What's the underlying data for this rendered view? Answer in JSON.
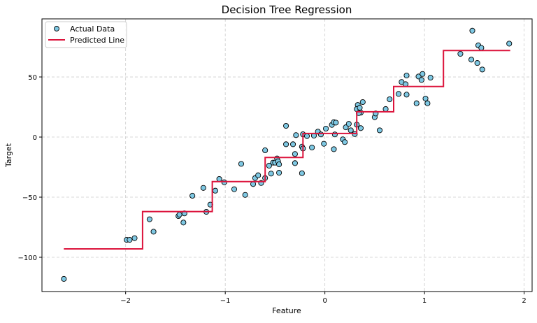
{
  "chart_data": {
    "type": "scatter",
    "title": "Decision Tree Regression",
    "xlabel": "Feature",
    "ylabel": "Target",
    "xlim": [
      -2.84,
      2.08
    ],
    "ylim": [
      -128.5,
      98.3
    ],
    "xticks": [
      -2,
      -1,
      0,
      1,
      2
    ],
    "xtick_labels": [
      "−2",
      "−1",
      "0",
      "1",
      "2"
    ],
    "yticks": [
      -100,
      -50,
      0,
      50
    ],
    "ytick_labels": [
      "−100",
      "−50",
      "0",
      "50"
    ],
    "grid": true,
    "legend_position": "top-left",
    "colors": {
      "points": "#7ec8e3",
      "line": "#dc143c"
    },
    "series": [
      {
        "name": "Actual Data",
        "kind": "scatter",
        "x": [
          -2.62,
          -1.99,
          -1.96,
          -1.91,
          -1.76,
          -1.72,
          -1.47,
          -1.46,
          -1.41,
          -1.42,
          -1.33,
          -1.22,
          -1.19,
          -1.15,
          -1.1,
          -1.06,
          -1.01,
          -0.91,
          -0.84,
          -0.8,
          -0.72,
          -0.7,
          -0.67,
          -0.64,
          -0.6,
          -0.6,
          -0.56,
          -0.54,
          -0.52,
          -0.5,
          -0.48,
          -0.47,
          -0.46,
          -0.46,
          -0.39,
          -0.39,
          -0.32,
          -0.29,
          -0.3,
          -0.3,
          -0.23,
          -0.22,
          -0.23,
          -0.22,
          -0.18,
          -0.13,
          -0.11,
          -0.07,
          -0.04,
          -0.01,
          0.01,
          0.07,
          0.09,
          0.11,
          0.1,
          0.09,
          0.18,
          0.2,
          0.21,
          0.24,
          0.26,
          0.3,
          0.32,
          0.33,
          0.32,
          0.35,
          0.36,
          0.34,
          0.38,
          0.36,
          0.5,
          0.51,
          0.55,
          0.61,
          0.65,
          0.74,
          0.77,
          0.82,
          0.81,
          0.82,
          0.92,
          0.94,
          0.98,
          0.97,
          1.01,
          1.03,
          1.06,
          1.36,
          1.47,
          1.48,
          1.53,
          1.54,
          1.57,
          1.58,
          1.85
        ],
        "y": [
          -118.0,
          -85.5,
          -85.5,
          -84.1,
          -68.4,
          -78.7,
          -65.7,
          -64.5,
          -63.5,
          -71.1,
          -48.8,
          -42.3,
          -62.2,
          -56.2,
          -44.6,
          -34.9,
          -37.6,
          -43.4,
          -22.3,
          -48.1,
          -39.1,
          -34.1,
          -31.8,
          -38.2,
          -34.1,
          -11.0,
          -23.8,
          -30.4,
          -21.3,
          -21.3,
          -17.8,
          -20.2,
          -22.7,
          -29.7,
          -6.0,
          9.3,
          -6.0,
          1.6,
          -14.1,
          -21.7,
          -8.0,
          -9.5,
          -30.1,
          2.3,
          0.8,
          -8.7,
          1.2,
          4.5,
          2.2,
          -5.6,
          7.0,
          10.1,
          12.4,
          12.0,
          2.2,
          -10.1,
          -1.9,
          -4.2,
          8.1,
          11.0,
          5.6,
          2.5,
          10.3,
          26.7,
          23.3,
          24.4,
          20.3,
          19.9,
          29.1,
          7.4,
          16.5,
          19.6,
          5.6,
          23.3,
          31.4,
          35.9,
          45.8,
          51.2,
          44.0,
          35.3,
          28.1,
          50.4,
          52.5,
          47.5,
          32.0,
          28.1,
          49.4,
          69.2,
          64.4,
          88.5,
          61.6,
          76.3,
          74.2,
          56.2,
          77.7
        ]
      },
      {
        "name": "Predicted Line",
        "kind": "step",
        "x": [
          -2.62,
          -1.83,
          -1.83,
          -1.13,
          -1.13,
          -0.6,
          -0.6,
          -0.22,
          -0.22,
          0.32,
          0.32,
          0.69,
          0.69,
          1.19,
          1.19,
          1.86
        ],
        "y": [
          -93,
          -93,
          -62,
          -62,
          -37,
          -37,
          -17,
          -17,
          3,
          3,
          21,
          21,
          42,
          42,
          72,
          72
        ]
      }
    ]
  }
}
